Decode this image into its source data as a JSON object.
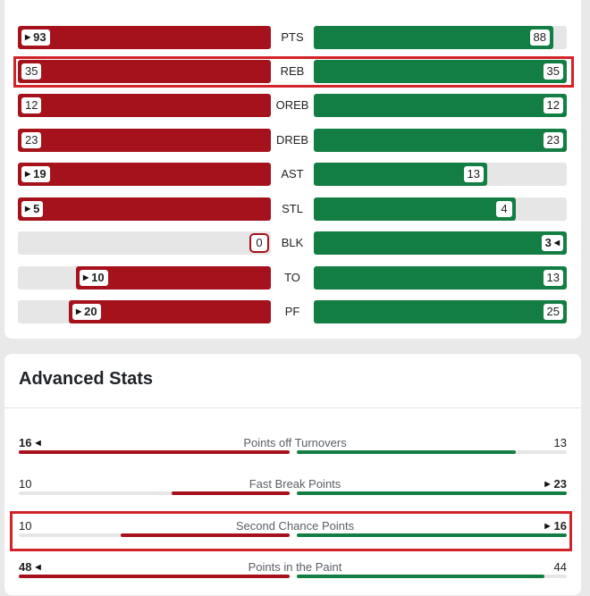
{
  "colors": {
    "team_left": "#a5121c",
    "team_right": "#137e44",
    "track": "#e6e6e6",
    "highlight": "#d2232a"
  },
  "comparison": {
    "max": 100,
    "rows": [
      {
        "label": "PTS",
        "left": "93",
        "right": "88",
        "left_pct": 1.0,
        "right_pct": 0.946,
        "left_leader": true,
        "right_leader": false
      },
      {
        "label": "REB",
        "left": "35",
        "right": "35",
        "left_pct": 1.0,
        "right_pct": 1.0,
        "left_leader": false,
        "right_leader": false
      },
      {
        "label": "OREB",
        "left": "12",
        "right": "12",
        "left_pct": 1.0,
        "right_pct": 1.0,
        "left_leader": false,
        "right_leader": false
      },
      {
        "label": "DREB",
        "left": "23",
        "right": "23",
        "left_pct": 1.0,
        "right_pct": 1.0,
        "left_leader": false,
        "right_leader": false
      },
      {
        "label": "AST",
        "left": "19",
        "right": "13",
        "left_pct": 1.0,
        "right_pct": 0.684,
        "left_leader": true,
        "right_leader": false
      },
      {
        "label": "STL",
        "left": "5",
        "right": "4",
        "left_pct": 1.0,
        "right_pct": 0.8,
        "left_leader": true,
        "right_leader": false
      },
      {
        "label": "BLK",
        "left": "0",
        "right": "3",
        "left_pct": 0.0,
        "right_pct": 1.0,
        "left_leader": false,
        "right_leader": true
      },
      {
        "label": "TO",
        "left": "10",
        "right": "13",
        "left_pct": 0.769,
        "right_pct": 1.0,
        "left_leader": true,
        "right_leader": false
      },
      {
        "label": "PF",
        "left": "20",
        "right": "25",
        "left_pct": 0.8,
        "right_pct": 1.0,
        "left_leader": true,
        "right_leader": false
      }
    ]
  },
  "advanced": {
    "title": "Advanced Stats",
    "rows": [
      {
        "label": "Points off Turnovers",
        "left": "16",
        "right": "13",
        "left_pct": 1.0,
        "right_pct": 0.8125,
        "left_leader": true,
        "right_leader": false
      },
      {
        "label": "Fast Break Points",
        "left": "10",
        "right": "23",
        "left_pct": 0.435,
        "right_pct": 1.0,
        "left_leader": false,
        "right_leader": true
      },
      {
        "label": "Second Chance Points",
        "left": "10",
        "right": "16",
        "left_pct": 0.625,
        "right_pct": 1.0,
        "left_leader": false,
        "right_leader": true
      },
      {
        "label": "Points in the Paint",
        "left": "48",
        "right": "44",
        "left_pct": 1.0,
        "right_pct": 0.917,
        "left_leader": true,
        "right_leader": false
      }
    ]
  },
  "highlights": [
    "REB",
    "Second Chance Points"
  ]
}
